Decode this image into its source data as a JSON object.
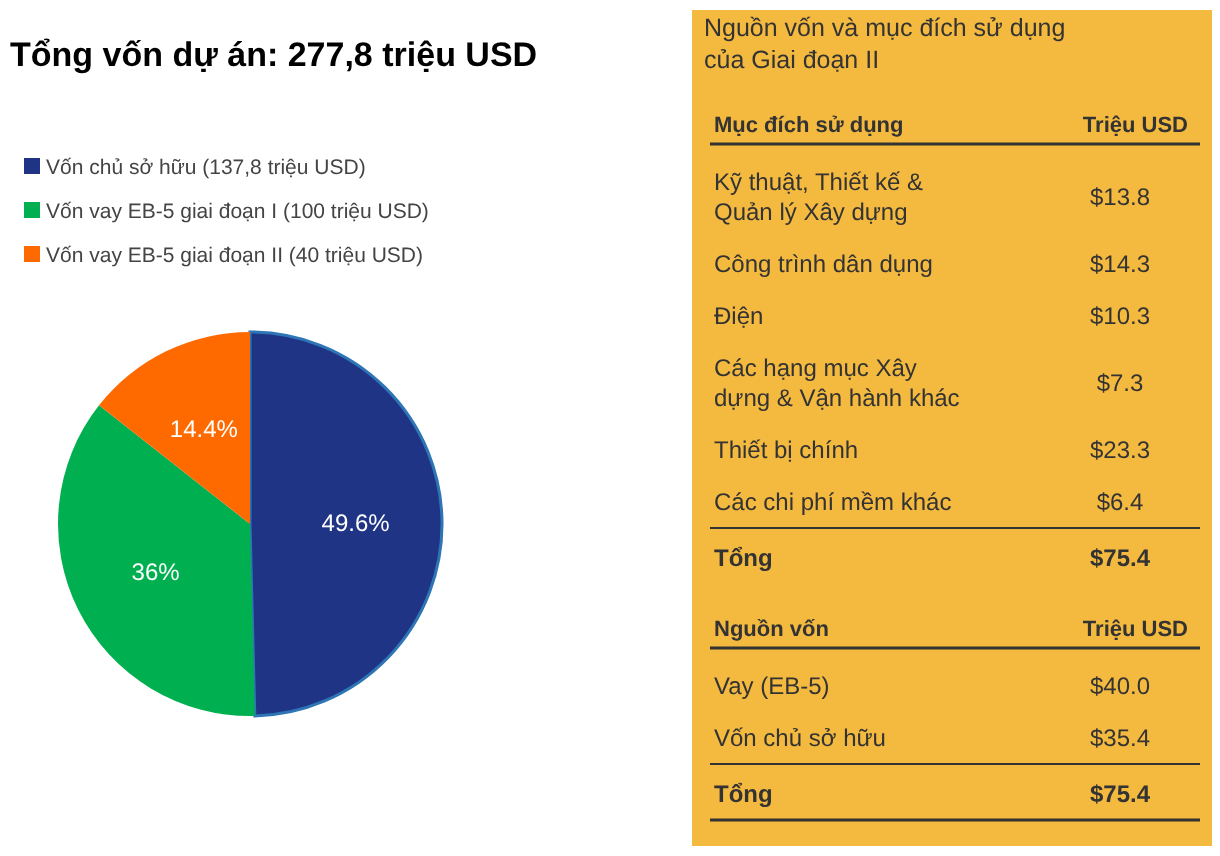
{
  "chart_data": [
    {
      "type": "pie",
      "title": "Tổng vốn dự án: 277,8 triệu USD",
      "categories": [
        "Vốn chủ sở hữu (137,8 triệu USD)",
        "Vốn vay EB-5 giai đoạn I (100 triệu USD)",
        "Vốn vay EB-5 giai đoạn II (40 triệu USD)"
      ],
      "values": [
        49.6,
        36,
        14.4
      ],
      "value_labels": [
        "49.6%",
        "36%",
        "14.4%"
      ],
      "colors": [
        "#1f3484",
        "#00b050",
        "#ff6a00"
      ],
      "legend": "top left"
    },
    {
      "type": "other",
      "title": "Nguồn vốn và mục đích sử dụng của Giai đoạn II",
      "annotations": [
        "Mục đích sử dụng",
        "Triệu USD",
        "Kỹ thuật, Thiết kế & Quản lý Xây dựng",
        "$13.8",
        "Công trình dân dụng",
        "$14.3",
        "Điện",
        "$10.3",
        "Các hạng mục Xây dựng & Vận hành khác",
        "$7.3",
        "Thiết bị chính",
        "$23.3",
        "Các chi phí mềm khác",
        "$6.4",
        "Tổng",
        "$75.4",
        "Nguồn vốn",
        "Triệu USD",
        "Vay (EB-5)",
        "$40.0",
        "Vốn chủ sở hữu",
        "$35.4",
        "Tổng",
        "$75.4"
      ]
    }
  ]
}
